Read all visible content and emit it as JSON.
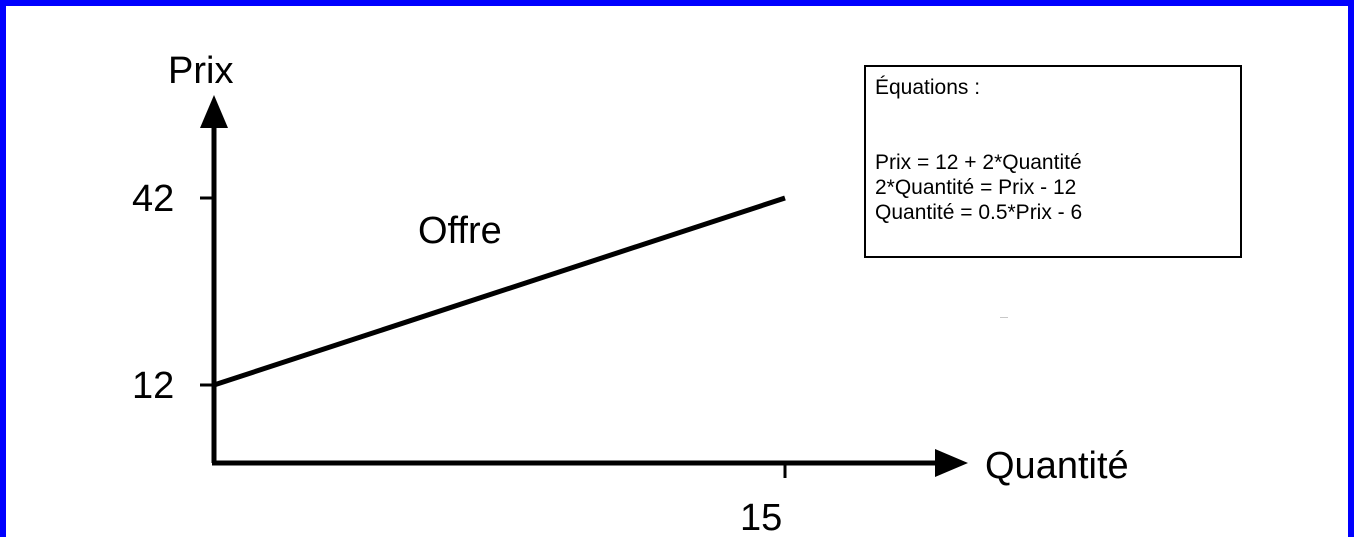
{
  "colors": {
    "frame": "#0000ff",
    "axis": "#000000",
    "line": "#000000",
    "background": "#ffffff"
  },
  "chart_data": {
    "type": "line",
    "ylabel": "Prix",
    "xlabel": "Quantité",
    "x_ticks": [
      {
        "value": 15,
        "label": "15"
      }
    ],
    "y_ticks": [
      {
        "value": 42,
        "label": "42"
      },
      {
        "value": 12,
        "label": "12"
      }
    ],
    "series": [
      {
        "name": "Offre",
        "points": [
          {
            "x": 0,
            "y": 12
          },
          {
            "x": 15,
            "y": 42
          }
        ]
      }
    ],
    "grid": false
  },
  "equations": {
    "title": "Équations :",
    "lines": [
      "Prix = 12 + 2*Quantité",
      "2*Quantité = Prix - 12",
      "Quantité = 0.5*Prix - 6"
    ]
  }
}
